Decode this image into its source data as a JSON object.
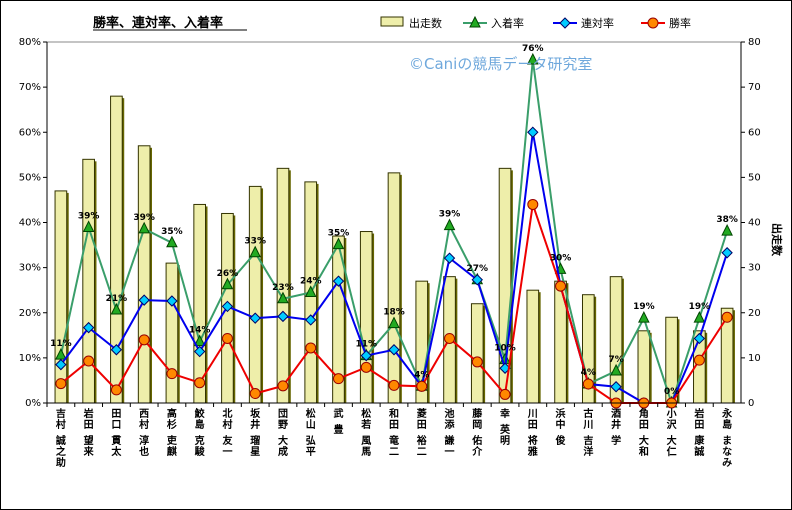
{
  "chart_data": {
    "type": "bar+line",
    "title": "勝率、連対率、入着率",
    "watermark": "©Caniの競馬データ研究室",
    "y_left": {
      "ylim": [
        0,
        80
      ],
      "ticks": [
        "0%",
        "10%",
        "20%",
        "30%",
        "40%",
        "50%",
        "60%",
        "70%",
        "80%"
      ]
    },
    "y_right": {
      "ylim": [
        0,
        80
      ],
      "ticks": [
        "0",
        "10",
        "20",
        "30",
        "40",
        "50",
        "60",
        "70",
        "80"
      ],
      "label": "出走数"
    },
    "categories": [
      "吉村 誠之助",
      "岩田 望来",
      "田口 貫太",
      "西村 淳也",
      "高杉 吏麒",
      "鮫島 克駿",
      "北村 友一",
      "坂井 瑠星",
      "団野 大成",
      "松山 弘平",
      "武 豊",
      "松若 風馬",
      "和田 竜二",
      "菱田 裕二",
      "池添 謙一",
      "藤岡 佑介",
      "幸 英明",
      "川田 将雅",
      "浜中 俊",
      "古川 吉洋",
      "酒井 学",
      "角田 大和",
      "小沢 大仁",
      "岩田 康誠",
      "永島 まなみ"
    ],
    "series": [
      {
        "name": "出走数",
        "kind": "bar",
        "axis": "right",
        "color": "#eeeeaa",
        "values": [
          47,
          54,
          68,
          57,
          31,
          44,
          42,
          48,
          52,
          49,
          37,
          38,
          51,
          27,
          28,
          22,
          52,
          25,
          27,
          24,
          28,
          16,
          19,
          16,
          21
        ]
      },
      {
        "name": "入着率",
        "kind": "line",
        "axis": "left",
        "color": "#3a9e6a",
        "marker": "triangle",
        "marker_color": "#22aa22",
        "values": [
          10.6,
          38.9,
          20.6,
          38.6,
          35.5,
          13.6,
          26.2,
          33.3,
          23.1,
          24.5,
          35.1,
          10.5,
          17.6,
          3.7,
          39.3,
          27.3,
          9.6,
          76.0,
          29.6,
          4.2,
          7.1,
          18.8,
          0,
          18.8,
          38.1
        ]
      },
      {
        "name": "連対率",
        "kind": "line",
        "axis": "left",
        "color": "#0000ee",
        "marker": "diamond",
        "marker_color": "#00ccff",
        "values": [
          8.5,
          16.7,
          11.8,
          22.8,
          22.6,
          11.4,
          21.4,
          18.8,
          19.2,
          18.4,
          27.0,
          10.5,
          11.8,
          3.7,
          32.1,
          27.3,
          7.7,
          60.0,
          25.9,
          4.2,
          3.6,
          0,
          0,
          14.3,
          33.3
        ]
      },
      {
        "name": "勝率",
        "kind": "line",
        "axis": "left",
        "color": "#ee0000",
        "marker": "circle",
        "marker_color": "#ff8800",
        "values": [
          4.3,
          9.3,
          2.9,
          14.0,
          6.5,
          4.5,
          14.3,
          2.1,
          3.8,
          12.2,
          5.4,
          7.9,
          3.9,
          3.7,
          14.3,
          9.1,
          1.9,
          44.0,
          25.9,
          4.2,
          0,
          0,
          0,
          9.5,
          19.0
        ]
      }
    ],
    "data_labels": [
      "11%",
      "39%",
      "21%",
      "39%",
      "35%",
      "14%",
      "26%",
      "33%",
      "23%",
      "24%",
      "35%",
      "11%",
      "18%",
      "4%",
      "39%",
      "27%",
      "10%",
      "76%",
      "30%",
      "4%",
      "7%",
      "19%",
      "0%",
      "19%",
      "38%"
    ],
    "legend": "top-right",
    "grid": false
  }
}
